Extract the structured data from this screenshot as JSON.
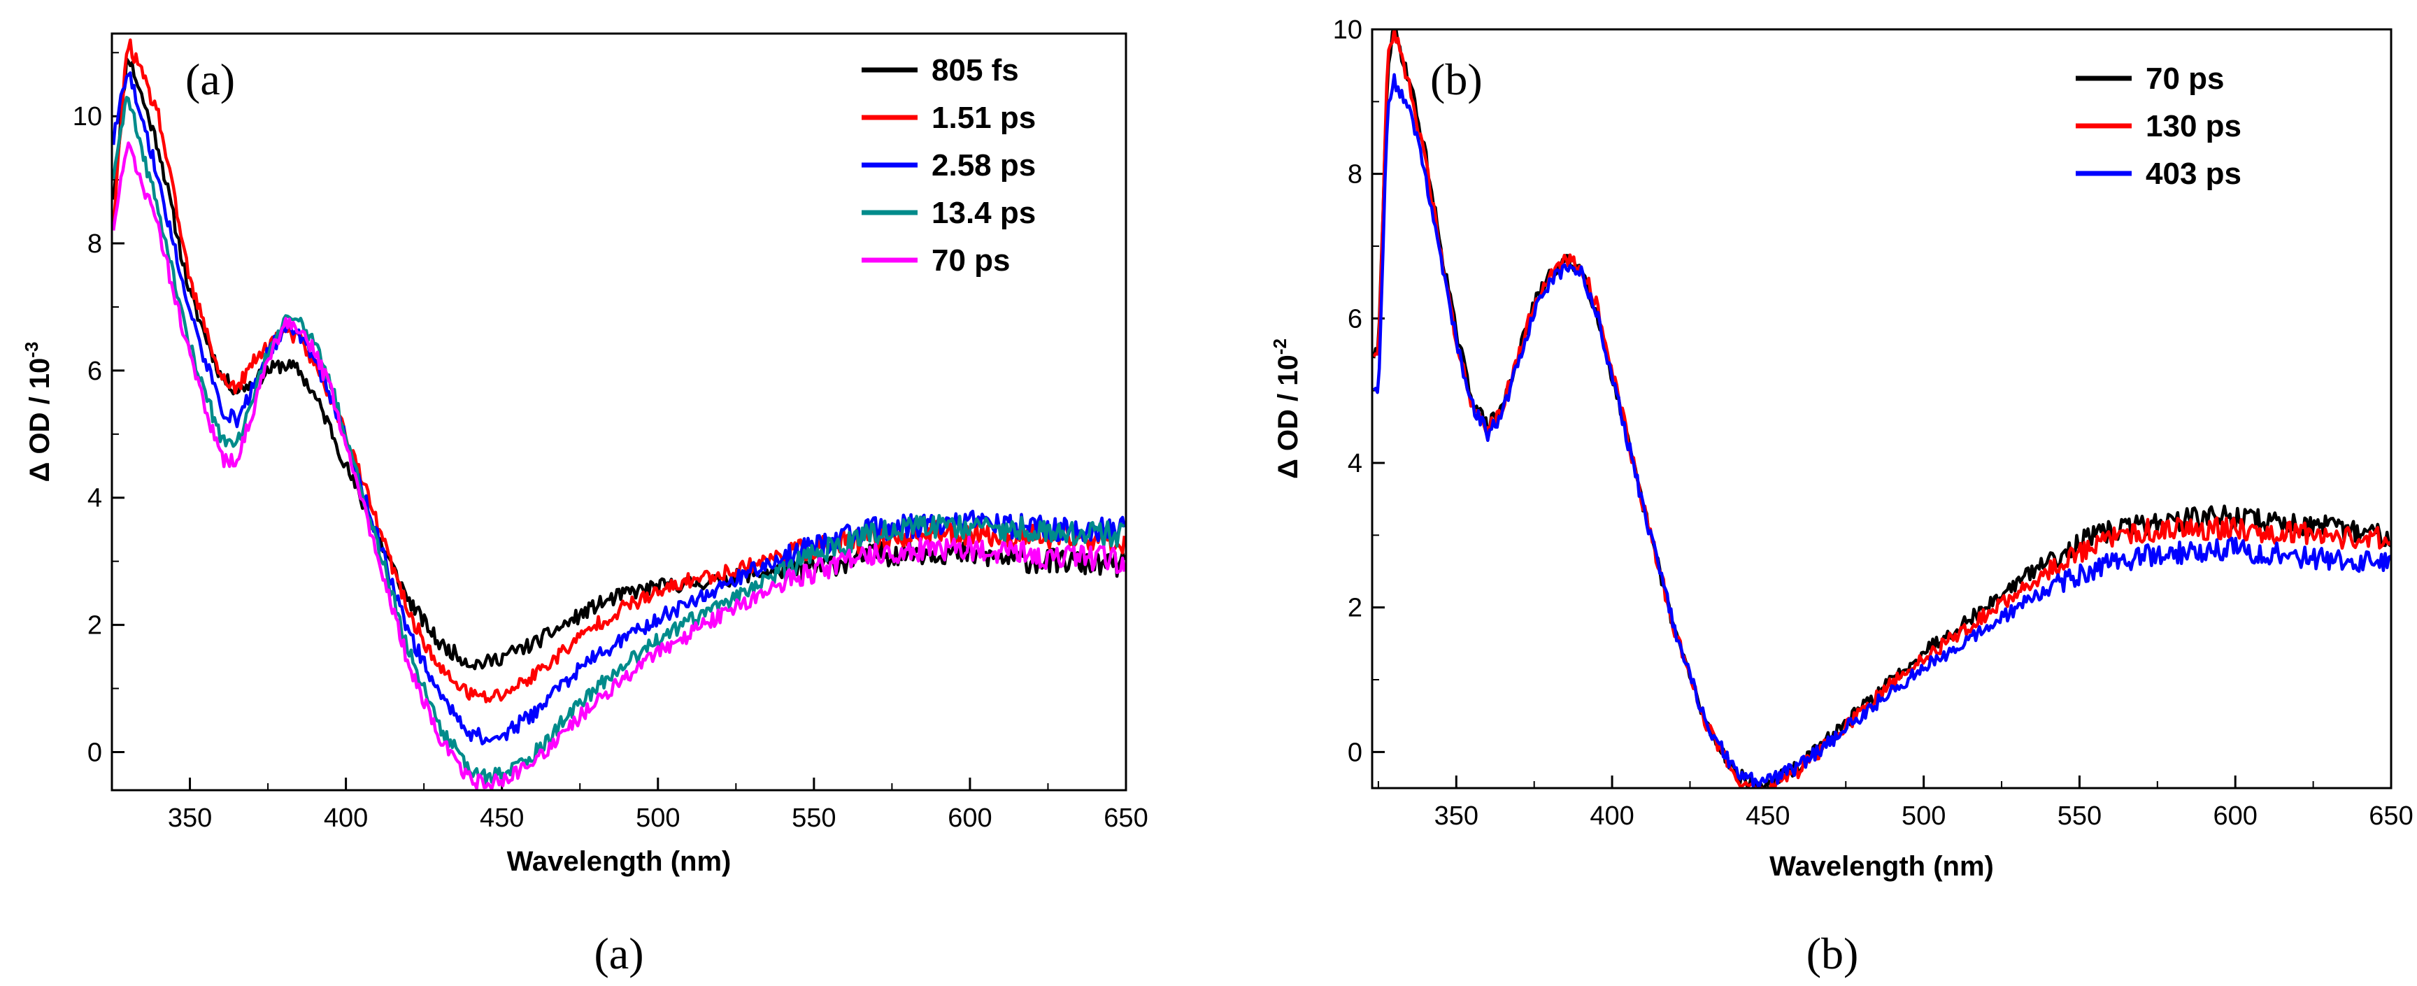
{
  "chart_data": [
    {
      "type": "line",
      "panel_label": "(a)",
      "caption": "(a)",
      "xlabel": "Wavelength (nm)",
      "ylabel": "Δ OD / 10",
      "ylabel_exponent": "-3",
      "xlim": [
        325,
        650
      ],
      "ylim": [
        -0.6,
        11.3
      ],
      "xticks": [
        350,
        400,
        450,
        500,
        550,
        600,
        650
      ],
      "yticks": [
        0,
        2,
        4,
        6,
        8,
        10
      ],
      "legend_position": "top-right",
      "noise": 0.12,
      "series": [
        {
          "name": "805 fs",
          "color": "#000000",
          "x": [
            325,
            330,
            340,
            350,
            360,
            365,
            370,
            375,
            380,
            385,
            390,
            395,
            400,
            410,
            420,
            430,
            440,
            445,
            450,
            460,
            470,
            480,
            490,
            500,
            510,
            520,
            530,
            540,
            550,
            560,
            570,
            580,
            590,
            600,
            610,
            620,
            630,
            640,
            650
          ],
          "y": [
            8.5,
            11.0,
            9.5,
            7.2,
            5.9,
            5.7,
            5.8,
            6.0,
            6.1,
            6.0,
            5.6,
            5.1,
            4.5,
            3.4,
            2.4,
            1.7,
            1.4,
            1.4,
            1.5,
            1.7,
            2.0,
            2.3,
            2.5,
            2.6,
            2.65,
            2.7,
            2.8,
            2.85,
            2.9,
            3.0,
            3.1,
            3.15,
            3.15,
            3.1,
            3.05,
            3.0,
            3.0,
            2.95,
            2.95
          ]
        },
        {
          "name": "1.51 ps",
          "color": "#ff0000",
          "x": [
            325,
            330,
            340,
            350,
            360,
            365,
            370,
            375,
            380,
            385,
            390,
            395,
            400,
            410,
            420,
            430,
            440,
            445,
            450,
            460,
            470,
            480,
            490,
            500,
            510,
            520,
            530,
            540,
            550,
            560,
            570,
            580,
            590,
            600,
            610,
            620,
            630,
            640,
            650
          ],
          "y": [
            8.0,
            11.2,
            10.0,
            7.4,
            5.9,
            5.7,
            6.1,
            6.4,
            6.6,
            6.5,
            6.1,
            5.6,
            5.0,
            3.6,
            2.2,
            1.3,
            0.9,
            0.85,
            0.9,
            1.2,
            1.6,
            2.0,
            2.3,
            2.5,
            2.7,
            2.8,
            2.95,
            3.1,
            3.2,
            3.3,
            3.35,
            3.4,
            3.45,
            3.45,
            3.4,
            3.4,
            3.35,
            3.35,
            3.3
          ]
        },
        {
          "name": "2.58 ps",
          "color": "#0000ff",
          "x": [
            325,
            330,
            340,
            350,
            360,
            365,
            370,
            375,
            380,
            385,
            390,
            395,
            400,
            410,
            420,
            430,
            440,
            445,
            450,
            460,
            470,
            480,
            490,
            500,
            510,
            520,
            530,
            540,
            550,
            560,
            570,
            580,
            590,
            600,
            610,
            620,
            630,
            640,
            650
          ],
          "y": [
            9.5,
            10.8,
            9.0,
            6.9,
            5.4,
            5.2,
            5.7,
            6.3,
            6.6,
            6.6,
            6.2,
            5.6,
            4.9,
            3.4,
            1.9,
            0.9,
            0.3,
            0.2,
            0.25,
            0.6,
            1.1,
            1.5,
            1.8,
            2.1,
            2.35,
            2.6,
            2.85,
            3.05,
            3.25,
            3.4,
            3.5,
            3.55,
            3.6,
            3.6,
            3.55,
            3.55,
            3.5,
            3.5,
            3.5
          ]
        },
        {
          "name": "13.4 ps",
          "color": "#008b8b",
          "x": [
            325,
            330,
            340,
            350,
            360,
            365,
            370,
            375,
            380,
            385,
            390,
            395,
            400,
            410,
            420,
            430,
            440,
            445,
            450,
            460,
            470,
            480,
            490,
            500,
            510,
            520,
            530,
            540,
            550,
            560,
            570,
            580,
            590,
            600,
            610,
            620,
            630,
            640,
            650
          ],
          "y": [
            9.0,
            10.3,
            8.5,
            6.4,
            4.9,
            4.8,
            5.5,
            6.3,
            6.8,
            6.8,
            6.4,
            5.8,
            5.0,
            3.3,
            1.6,
            0.4,
            -0.3,
            -0.4,
            -0.35,
            -0.05,
            0.5,
            1.0,
            1.4,
            1.75,
            2.05,
            2.3,
            2.6,
            2.85,
            3.1,
            3.3,
            3.45,
            3.5,
            3.55,
            3.55,
            3.5,
            3.5,
            3.45,
            3.45,
            3.4
          ]
        },
        {
          "name": "70 ps",
          "color": "#ff00ff",
          "x": [
            325,
            330,
            340,
            350,
            360,
            365,
            370,
            375,
            380,
            385,
            390,
            395,
            400,
            410,
            420,
            430,
            440,
            445,
            450,
            460,
            470,
            480,
            490,
            500,
            510,
            520,
            530,
            540,
            550,
            560,
            570,
            580,
            590,
            600,
            610,
            620,
            630,
            640,
            650
          ],
          "y": [
            8.0,
            9.6,
            8.2,
            6.2,
            4.6,
            4.6,
            5.3,
            6.2,
            6.7,
            6.7,
            6.3,
            5.7,
            4.9,
            3.1,
            1.4,
            0.2,
            -0.45,
            -0.5,
            -0.45,
            -0.2,
            0.3,
            0.8,
            1.2,
            1.55,
            1.85,
            2.15,
            2.4,
            2.65,
            2.85,
            3.0,
            3.1,
            3.15,
            3.2,
            3.2,
            3.15,
            3.1,
            3.05,
            3.05,
            3.0
          ]
        }
      ]
    },
    {
      "type": "line",
      "panel_label": "(b)",
      "caption": "(b)",
      "xlabel": "Wavelength (nm)",
      "ylabel": "Δ OD / 10",
      "ylabel_exponent": "-2",
      "xlim": [
        323,
        650
      ],
      "ylim": [
        -0.5,
        10
      ],
      "xticks": [
        350,
        400,
        450,
        500,
        550,
        600,
        650
      ],
      "yticks": [
        0,
        2,
        4,
        6,
        8,
        10
      ],
      "legend_position": "top-right",
      "noise": 0.1,
      "series": [
        {
          "name": "70 ps",
          "color": "#000000",
          "x": [
            325,
            328,
            330,
            335,
            340,
            345,
            350,
            355,
            360,
            365,
            370,
            375,
            380,
            385,
            390,
            395,
            400,
            410,
            420,
            430,
            440,
            445,
            450,
            460,
            470,
            480,
            490,
            500,
            510,
            520,
            530,
            540,
            550,
            560,
            570,
            580,
            590,
            600,
            610,
            620,
            630,
            640,
            650
          ],
          "y": [
            5.5,
            9.5,
            10.0,
            9.3,
            8.3,
            7.0,
            5.8,
            4.9,
            4.5,
            4.8,
            5.5,
            6.2,
            6.6,
            6.8,
            6.7,
            6.1,
            5.2,
            3.4,
            1.7,
            0.4,
            -0.3,
            -0.45,
            -0.45,
            -0.2,
            0.2,
            0.6,
            1.0,
            1.4,
            1.7,
            2.0,
            2.35,
            2.65,
            2.9,
            3.05,
            3.15,
            3.2,
            3.25,
            3.25,
            3.2,
            3.15,
            3.1,
            3.05,
            3.0
          ]
        },
        {
          "name": "130 ps",
          "color": "#ff0000",
          "x": [
            325,
            328,
            330,
            335,
            340,
            345,
            350,
            355,
            360,
            365,
            370,
            375,
            380,
            385,
            390,
            395,
            400,
            410,
            420,
            430,
            440,
            445,
            450,
            460,
            470,
            480,
            490,
            500,
            510,
            520,
            530,
            540,
            550,
            560,
            570,
            580,
            590,
            600,
            610,
            620,
            630,
            640,
            650
          ],
          "y": [
            5.5,
            9.6,
            10.0,
            9.2,
            8.2,
            6.9,
            5.7,
            4.8,
            4.5,
            4.8,
            5.5,
            6.2,
            6.6,
            6.8,
            6.75,
            6.2,
            5.3,
            3.4,
            1.7,
            0.4,
            -0.35,
            -0.5,
            -0.5,
            -0.25,
            0.15,
            0.55,
            0.95,
            1.3,
            1.6,
            1.9,
            2.2,
            2.5,
            2.75,
            2.95,
            3.05,
            3.1,
            3.1,
            3.1,
            3.05,
            3.05,
            3.0,
            2.95,
            2.95
          ]
        },
        {
          "name": "403 ps",
          "color": "#0000ff",
          "x": [
            325,
            328,
            330,
            335,
            340,
            345,
            350,
            355,
            360,
            365,
            370,
            375,
            380,
            385,
            390,
            395,
            400,
            410,
            420,
            430,
            440,
            445,
            450,
            460,
            470,
            480,
            490,
            500,
            510,
            520,
            530,
            540,
            550,
            560,
            570,
            580,
            590,
            600,
            610,
            620,
            630,
            640,
            650
          ],
          "y": [
            5.0,
            9.0,
            9.3,
            8.9,
            8.0,
            6.8,
            5.7,
            4.8,
            4.4,
            4.7,
            5.4,
            6.1,
            6.5,
            6.7,
            6.65,
            6.1,
            5.2,
            3.4,
            1.7,
            0.4,
            -0.3,
            -0.4,
            -0.4,
            -0.2,
            0.15,
            0.5,
            0.85,
            1.15,
            1.45,
            1.7,
            2.0,
            2.25,
            2.45,
            2.6,
            2.7,
            2.75,
            2.8,
            2.8,
            2.75,
            2.7,
            2.65,
            2.65,
            2.6
          ]
        }
      ]
    }
  ]
}
